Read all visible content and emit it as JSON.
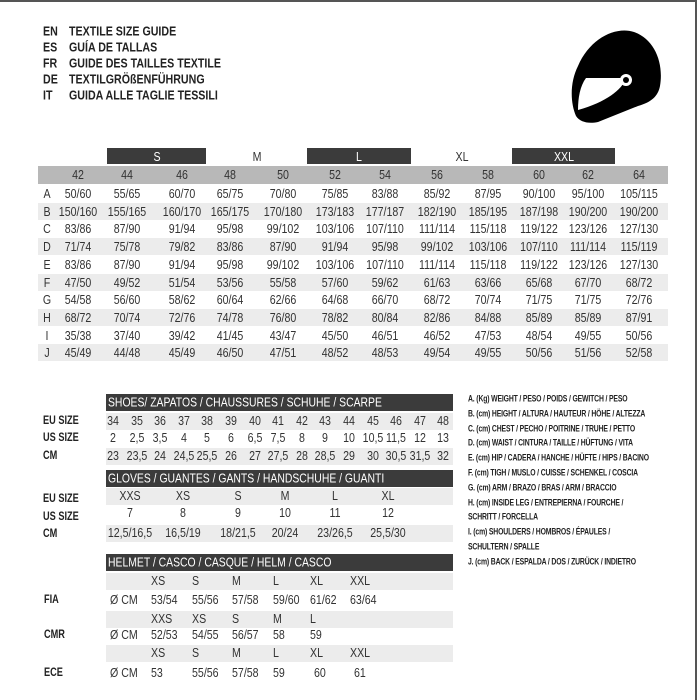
{
  "titles": [
    {
      "code": "EN",
      "text": "TEXTILE SIZE GUIDE"
    },
    {
      "code": "ES",
      "text": "GUÍA DE TALLAS"
    },
    {
      "code": "FR",
      "text": "GUIDE DES TAILLES TEXTILE"
    },
    {
      "code": "DE",
      "text": "TEXTILGRÖßENFÜHRUNG"
    },
    {
      "code": "IT",
      "text": "GUIDA ALLE TAGLIE TESSILI"
    }
  ],
  "icon": "helmet-icon",
  "colors": {
    "dark_bar": "#3b3b3b",
    "header_gray": "#b8b8b8",
    "stripe": "#ececec"
  },
  "textile": {
    "size_groups": [
      {
        "label": "S",
        "dark": true
      },
      {
        "label": "M",
        "dark": false
      },
      {
        "label": "L",
        "dark": true
      },
      {
        "label": "XL",
        "dark": false
      },
      {
        "label": "XXL",
        "dark": true
      }
    ],
    "sizes": [
      "42",
      "44",
      "46",
      "48",
      "50",
      "52",
      "54",
      "56",
      "58",
      "60",
      "62",
      "64"
    ],
    "rows": [
      {
        "key": "A",
        "values": [
          "50/60",
          "55/65",
          "60/70",
          "65/75",
          "70/80",
          "75/85",
          "83/88",
          "85/92",
          "87/95",
          "90/100",
          "95/100",
          "105/115"
        ]
      },
      {
        "key": "B",
        "values": [
          "150/160",
          "155/165",
          "160/170",
          "165/175",
          "170/180",
          "173/183",
          "177/187",
          "182/190",
          "185/195",
          "187/198",
          "190/200",
          "190/200"
        ]
      },
      {
        "key": "C",
        "values": [
          "83/86",
          "87/90",
          "91/94",
          "95/98",
          "99/102",
          "103/106",
          "107/110",
          "111/114",
          "115/118",
          "119/122",
          "123/126",
          "127/130"
        ]
      },
      {
        "key": "D",
        "values": [
          "71/74",
          "75/78",
          "79/82",
          "83/86",
          "87/90",
          "91/94",
          "95/98",
          "99/102",
          "103/106",
          "107/110",
          "111/114",
          "115/119"
        ]
      },
      {
        "key": "E",
        "values": [
          "83/86",
          "87/90",
          "91/94",
          "95/98",
          "99/102",
          "103/106",
          "107/110",
          "111/114",
          "115/118",
          "119/122",
          "123/126",
          "127/130"
        ]
      },
      {
        "key": "F",
        "values": [
          "47/50",
          "49/52",
          "51/54",
          "53/56",
          "55/58",
          "57/60",
          "59/62",
          "61/63",
          "63/66",
          "65/68",
          "67/70",
          "68/72"
        ]
      },
      {
        "key": "G",
        "values": [
          "54/58",
          "56/60",
          "58/62",
          "60/64",
          "62/66",
          "64/68",
          "66/70",
          "68/72",
          "70/74",
          "71/75",
          "71/75",
          "72/76"
        ]
      },
      {
        "key": "H",
        "values": [
          "68/72",
          "70/74",
          "72/76",
          "74/78",
          "76/80",
          "78/82",
          "80/84",
          "82/86",
          "84/88",
          "85/89",
          "85/89",
          "87/91"
        ]
      },
      {
        "key": "I",
        "values": [
          "35/38",
          "37/40",
          "39/42",
          "41/45",
          "43/47",
          "45/50",
          "46/51",
          "46/52",
          "47/53",
          "48/54",
          "49/55",
          "50/56"
        ]
      },
      {
        "key": "J",
        "values": [
          "45/49",
          "44/48",
          "45/49",
          "46/50",
          "47/51",
          "48/52",
          "48/53",
          "49/54",
          "49/55",
          "50/56",
          "51/56",
          "52/58"
        ]
      }
    ]
  },
  "shoes": {
    "title": "SHOES/ ZAPATOS / CHAUSSURES / SCHUHE / SCARPE",
    "rows": [
      {
        "label": "EU SIZE",
        "values": [
          "34",
          "35",
          "36",
          "37",
          "38",
          "39",
          "40",
          "41",
          "42",
          "43",
          "44",
          "45",
          "46",
          "47",
          "48"
        ]
      },
      {
        "label": "US SIZE",
        "values": [
          "2",
          "2,5",
          "3,5",
          "4",
          "5",
          "6",
          "6,5",
          "7,5",
          "8",
          "9",
          "10",
          "10,5",
          "11,5",
          "12",
          "13"
        ]
      },
      {
        "label": "CM",
        "values": [
          "23",
          "23,5",
          "24",
          "24,5",
          "25,5",
          "26",
          "27",
          "27,5",
          "28",
          "28,5",
          "29",
          "30",
          "30,5",
          "31,5",
          "32"
        ]
      }
    ]
  },
  "gloves": {
    "title": "GLOVES / GUANTES / GANTS / HANDSCHUHE / GUANTI",
    "rows": [
      {
        "label": "EU SIZE",
        "values": [
          "XXS",
          "XS",
          "S",
          "M",
          "L",
          "XL"
        ]
      },
      {
        "label": "US SIZE",
        "values": [
          "7",
          "8",
          "9",
          "10",
          "11",
          "12"
        ]
      },
      {
        "label": "CM",
        "values": [
          "12,5/16,5",
          "16,5/19",
          "18/21,5",
          "20/24",
          "23/26,5",
          "25,5/30"
        ]
      }
    ]
  },
  "helmet": {
    "title": "HELMET / CASCO / CASQUE / HELM / CASCO",
    "unit": "Ø CM",
    "standards": [
      {
        "label": "FIA",
        "sizes": [
          "XS",
          "S",
          "M",
          "L",
          "XL",
          "XXL"
        ],
        "values": [
          "53/54",
          "55/56",
          "57/58",
          "59/60",
          "61/62",
          "63/64"
        ]
      },
      {
        "label": "CMR",
        "sizes": [
          "XXS",
          "XS",
          "S",
          "M",
          "L"
        ],
        "values": [
          "52/53",
          "54/55",
          "56/57",
          "58",
          "59"
        ]
      },
      {
        "label": "ECE",
        "sizes": [
          "XS",
          "S",
          "M",
          "L",
          "XL",
          "XXL"
        ],
        "values": [
          "53",
          "55/56",
          "57/58",
          "59",
          "60",
          "61"
        ]
      }
    ]
  },
  "legend": [
    "A. (Kg) WEIGHT / PESO / POIDS / GEWITCH / PESO",
    "B. (cm) HEIGHT / ALTURA / HAUTEUR / HÖHE / ALTEZZA",
    "C. (cm) CHEST / PECHO / POITRINE / TRUHE / PETTO",
    "D. (cm) WAIST / CINTURA / TAILLE / HÜFTUNG / VITA",
    "E. (cm) HIP / CADERA / HANCHE / HÜFTE / HIPS /  BACINO",
    "F. (cm) TIGH / MUSLO / CUISSE / SCHENKEL / COSCIA",
    "G. (cm) ARM  / BRAZO / BRAS / ARM / BRACCIO",
    "H. (cm) INSIDE LEG / ENTREPIERNA / FOURCHE /",
    "SCHRITT / FORCELLA",
    "I.  (cm) SHOULDERS / HOMBROS / ÉPAULES /",
    "SCHULTERN / SPALLE",
    "J. (cm) BACK / ESPALDA / DOS / ZURÜCK / INDIETRO"
  ]
}
